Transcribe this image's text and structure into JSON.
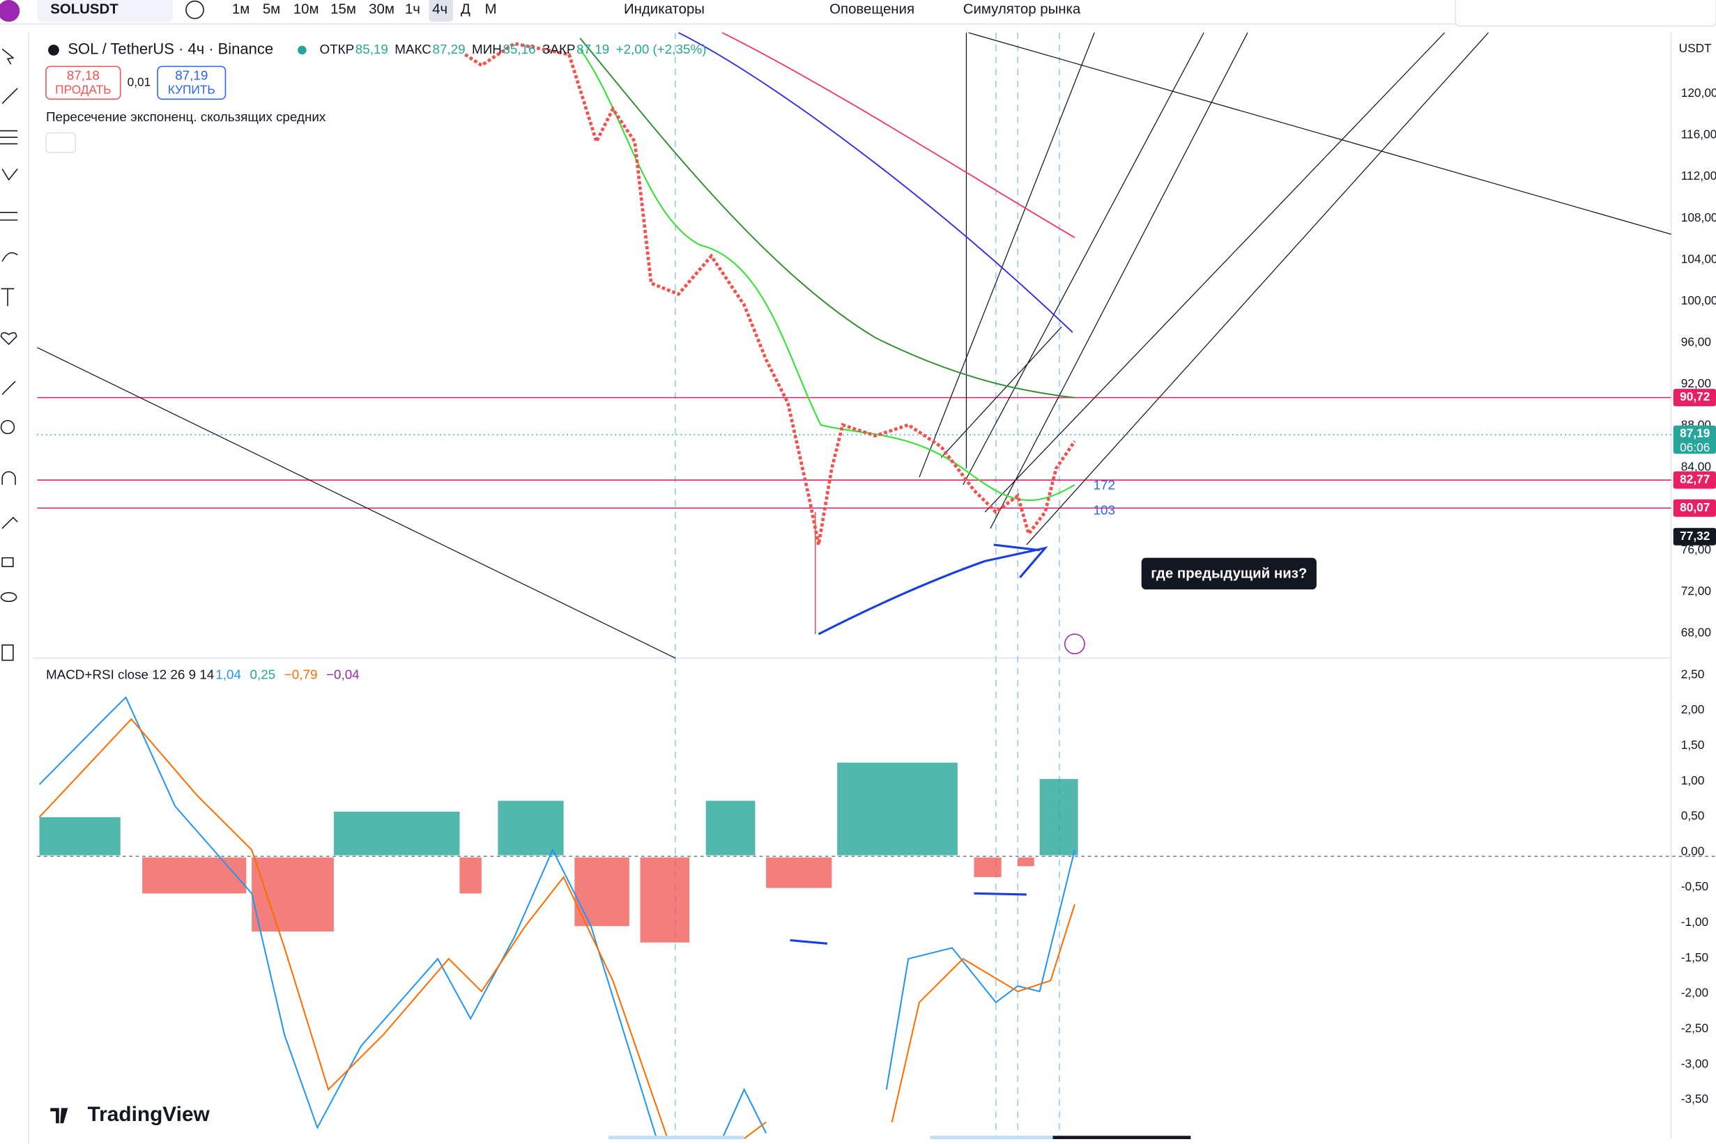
{
  "toolbar": {
    "symbol": "SOLUSDT",
    "intervals": [
      "1м",
      "5м",
      "10м",
      "15м",
      "30м",
      "1ч",
      "4ч",
      "Д",
      "М"
    ],
    "indicators": "Индикаторы",
    "alerts": "Оповещения",
    "replay": "Симулятор рынка"
  },
  "legend": {
    "title": "SOL / TetherUS · 4ч · Binance",
    "open_label": "ОТКР",
    "open": "85,19",
    "high_label": "МАКС",
    "high": "87,29",
    "low_label": "МИН",
    "low": "85,16",
    "close_label": "ЗАКР",
    "close": "87,19",
    "change": "+2,00 (+2,35%)",
    "sell_price": "87,18",
    "sell": "ПРОДАТЬ",
    "spread": "0,01",
    "buy_price": "87,19",
    "buy": "КУПИТЬ",
    "indicator": "Пересечение экспоненц. скользящих средних"
  },
  "price_axis": {
    "currency": "USDT",
    "ticks": [
      "120,00",
      "116,00",
      "112,00",
      "108,00",
      "104,00",
      "100,00",
      "96,00",
      "92,00",
      "88,00",
      "84,00",
      "76,00",
      "72,00",
      "68,00"
    ],
    "tags": [
      {
        "label": "90,72",
        "color": "#e91e63"
      },
      {
        "label": "87,19",
        "sub": "06:06",
        "color": "#26a69a"
      },
      {
        "label": "82,77",
        "color": "#e91e63"
      },
      {
        "label": "80,07",
        "color": "#e91e63"
      },
      {
        "label": "77,32",
        "color": "#131722"
      }
    ]
  },
  "macd": {
    "label": "MACD+RSI close 12 26 9 14",
    "values": [
      "1,04",
      "0,25",
      "−0,79",
      "−0,04"
    ],
    "colors": [
      "#2196f3",
      "#26a69a",
      "#ff6d00",
      "#9c27b0"
    ],
    "ticks": [
      "2,50",
      "2,00",
      "1,50",
      "1,00",
      "0,50",
      "0,00",
      "-0,50",
      "-1,00",
      "-1,50",
      "-2,00",
      "-2,50",
      "-3,00",
      "-3,50"
    ]
  },
  "annotations": {
    "count1": "172",
    "count2": "103",
    "note": "где предыдущий низ?"
  },
  "logo": "TradingView"
}
